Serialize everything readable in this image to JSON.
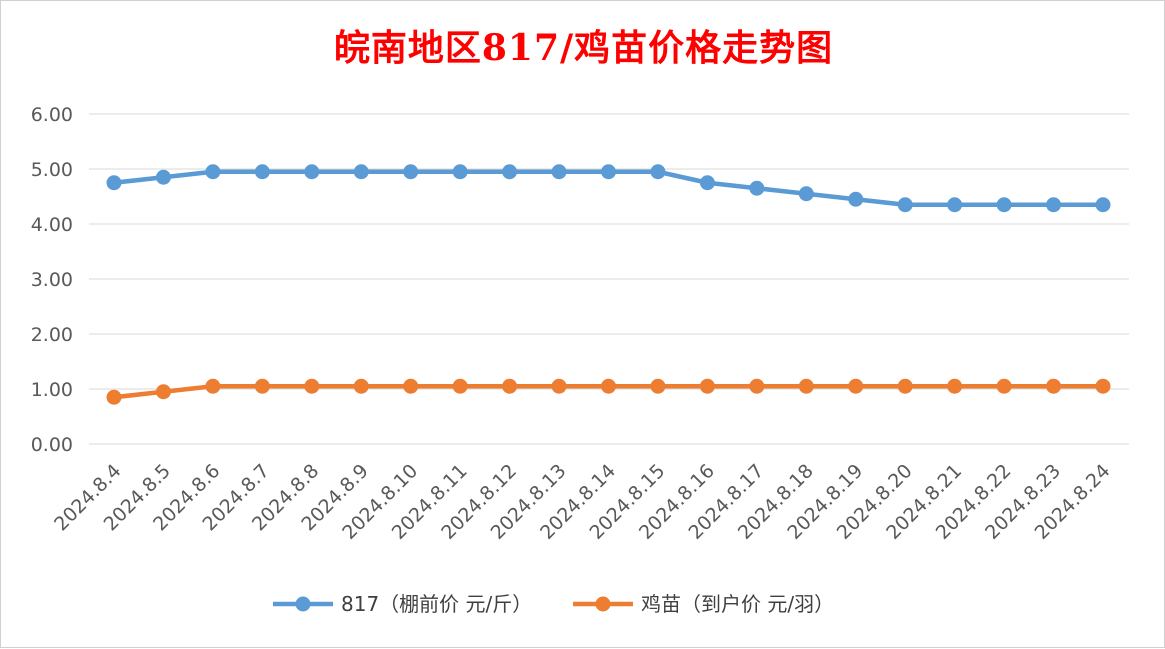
{
  "chart_data": {
    "type": "line",
    "title": "皖南地区817/鸡苗价格走势图",
    "categories": [
      "2024.8.4",
      "2024.8.5",
      "2024.8.6",
      "2024.8.7",
      "2024.8.8",
      "2024.8.9",
      "2024.8.10",
      "2024.8.11",
      "2024.8.12",
      "2024.8.13",
      "2024.8.14",
      "2024.8.15",
      "2024.8.16",
      "2024.8.17",
      "2024.8.18",
      "2024.8.19",
      "2024.8.20",
      "2024.8.21",
      "2024.8.22",
      "2024.8.23",
      "2024.8.24"
    ],
    "series": [
      {
        "name": "817（棚前价 元/斤）",
        "color": "#5b9bd5",
        "values": [
          4.75,
          4.85,
          4.95,
          4.95,
          4.95,
          4.95,
          4.95,
          4.95,
          4.95,
          4.95,
          4.95,
          4.95,
          4.75,
          4.65,
          4.55,
          4.45,
          4.35,
          4.35,
          4.35,
          4.35,
          4.35
        ]
      },
      {
        "name": "鸡苗（到户价 元/羽）",
        "color": "#ed7d31",
        "values": [
          0.85,
          0.95,
          1.05,
          1.05,
          1.05,
          1.05,
          1.05,
          1.05,
          1.05,
          1.05,
          1.05,
          1.05,
          1.05,
          1.05,
          1.05,
          1.05,
          1.05,
          1.05,
          1.05,
          1.05,
          1.05
        ]
      }
    ],
    "y_ticks": [
      "0.00",
      "1.00",
      "2.00",
      "3.00",
      "4.00",
      "5.00",
      "6.00"
    ],
    "ylim": [
      0,
      6
    ],
    "grid": true,
    "legend_position": "bottom"
  }
}
